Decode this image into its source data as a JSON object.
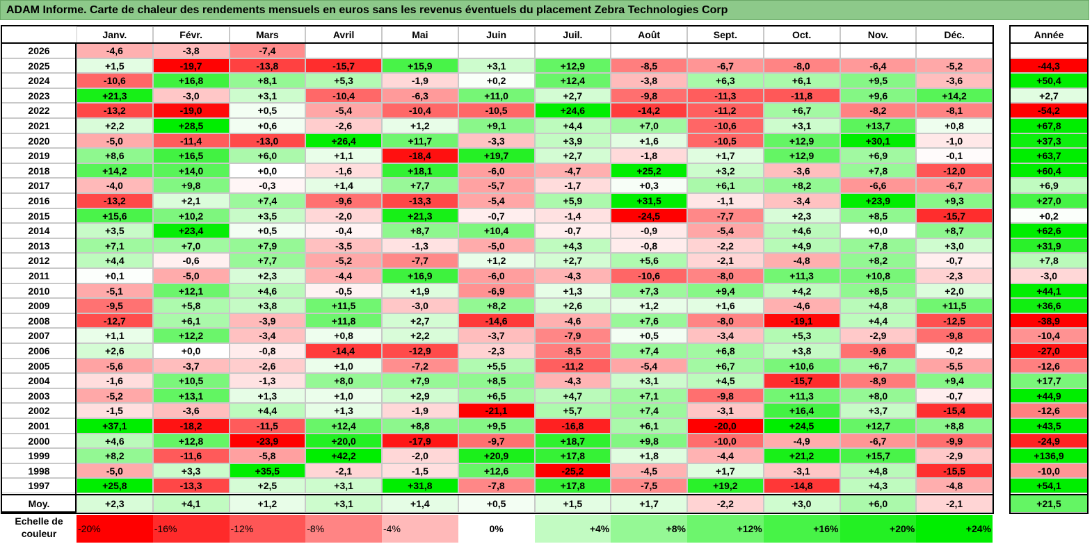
{
  "title": "ADAM Informe. Carte de chaleur des rendements mensuels en euros sans les revenus éventuels du placement Zebra Technologies Corp",
  "chart_data": {
    "type": "heatmap",
    "title": "ADAM Informe. Carte de chaleur des rendements mensuels en euros sans les revenus éventuels du placement Zebra Technologies Corp",
    "months": [
      "Janv.",
      "Févr.",
      "Mars",
      "Avril",
      "Mai",
      "Juin",
      "Juil.",
      "Août",
      "Sept.",
      "Oct.",
      "Nov.",
      "Déc."
    ],
    "annual_header": "Année",
    "rows": [
      {
        "year": "2026",
        "values": [
          "-4,6",
          "-3,8",
          "-7,4",
          "",
          "",
          "",
          "",
          "",
          "",
          "",
          "",
          ""
        ],
        "annual": ""
      },
      {
        "year": "2025",
        "values": [
          "+1,5",
          "-19,7",
          "-13,8",
          "-15,7",
          "+15,9",
          "+3,1",
          "+12,9",
          "-8,5",
          "-6,7",
          "-8,0",
          "-6,4",
          "-5,2"
        ],
        "annual": "-44,3"
      },
      {
        "year": "2024",
        "values": [
          "-10,6",
          "+16,8",
          "+8,1",
          "+5,3",
          "-1,9",
          "+0,2",
          "+12,4",
          "-3,8",
          "+6,3",
          "+6,1",
          "+9,5",
          "-3,6"
        ],
        "annual": "+50,4"
      },
      {
        "year": "2023",
        "values": [
          "+21,3",
          "-3,0",
          "+3,1",
          "-10,4",
          "-6,3",
          "+11,0",
          "+2,7",
          "-9,8",
          "-11,3",
          "-11,8",
          "+9,6",
          "+14,2"
        ],
        "annual": "+2,7"
      },
      {
        "year": "2022",
        "values": [
          "-13,2",
          "-19,0",
          "+0,5",
          "-5,4",
          "-10,4",
          "-10,5",
          "+24,6",
          "-14,2",
          "-11,2",
          "+6,7",
          "-8,2",
          "-8,1"
        ],
        "annual": "-54,2"
      },
      {
        "year": "2021",
        "values": [
          "+2,2",
          "+28,5",
          "+0,6",
          "-2,6",
          "+1,2",
          "+9,1",
          "+4,4",
          "+7,0",
          "-10,6",
          "+3,1",
          "+13,7",
          "+0,8"
        ],
        "annual": "+67,8"
      },
      {
        "year": "2020",
        "values": [
          "-5,0",
          "-11,4",
          "-13,0",
          "+26,4",
          "+11,7",
          "-3,3",
          "+3,9",
          "+1,6",
          "-10,5",
          "+12,9",
          "+30,1",
          "-1,0"
        ],
        "annual": "+37,3"
      },
      {
        "year": "2019",
        "values": [
          "+8,6",
          "+16,5",
          "+6,0",
          "+1,1",
          "-18,4",
          "+19,7",
          "+2,7",
          "-1,8",
          "+1,7",
          "+12,9",
          "+6,9",
          "-0,1"
        ],
        "annual": "+63,7"
      },
      {
        "year": "2018",
        "values": [
          "+14,2",
          "+14,0",
          "+0,0",
          "-1,6",
          "+18,1",
          "-6,0",
          "-4,7",
          "+25,2",
          "+3,2",
          "-3,6",
          "+7,8",
          "-12,0"
        ],
        "annual": "+60,4"
      },
      {
        "year": "2017",
        "values": [
          "-4,0",
          "+9,8",
          "-0,3",
          "+1,4",
          "+7,7",
          "-5,7",
          "-1,7",
          "+0,3",
          "+6,1",
          "+8,2",
          "-6,6",
          "-6,7"
        ],
        "annual": "+6,9"
      },
      {
        "year": "2016",
        "values": [
          "-13,2",
          "+2,1",
          "+7,4",
          "-9,6",
          "-13,3",
          "-5,4",
          "+5,9",
          "+31,5",
          "-1,1",
          "-3,4",
          "+23,9",
          "+9,3"
        ],
        "annual": "+27,0"
      },
      {
        "year": "2015",
        "values": [
          "+15,6",
          "+10,2",
          "+3,5",
          "-2,0",
          "+21,3",
          "-0,7",
          "-1,4",
          "-24,5",
          "-7,7",
          "+2,3",
          "+8,5",
          "-15,7"
        ],
        "annual": "+0,2"
      },
      {
        "year": "2014",
        "values": [
          "+3,5",
          "+23,4",
          "+0,5",
          "-0,4",
          "+8,7",
          "+10,4",
          "-0,7",
          "-0,9",
          "-5,4",
          "+4,6",
          "+0,0",
          "+8,7"
        ],
        "annual": "+62,6"
      },
      {
        "year": "2013",
        "values": [
          "+7,1",
          "+7,0",
          "+7,9",
          "-3,5",
          "-1,3",
          "-5,0",
          "+4,3",
          "-0,8",
          "-2,2",
          "+4,9",
          "+7,8",
          "+3,0"
        ],
        "annual": "+31,9"
      },
      {
        "year": "2012",
        "values": [
          "+4,4",
          "-0,6",
          "+7,7",
          "-5,2",
          "-7,7",
          "+1,2",
          "+2,7",
          "+5,6",
          "-2,1",
          "-4,8",
          "+8,2",
          "-0,7"
        ],
        "annual": "+7,8"
      },
      {
        "year": "2011",
        "values": [
          "+0,1",
          "-5,0",
          "+2,3",
          "-4,4",
          "+16,9",
          "-6,0",
          "-4,3",
          "-10,6",
          "-8,0",
          "+11,3",
          "+10,8",
          "-2,3"
        ],
        "annual": "-3,0"
      },
      {
        "year": "2010",
        "values": [
          "-5,1",
          "+12,1",
          "+4,6",
          "-0,5",
          "+1,9",
          "-6,9",
          "+1,3",
          "+7,3",
          "+9,4",
          "+4,2",
          "+8,5",
          "+2,0"
        ],
        "annual": "+44,1"
      },
      {
        "year": "2009",
        "values": [
          "-9,5",
          "+5,8",
          "+3,8",
          "+11,5",
          "-3,0",
          "+8,2",
          "+2,6",
          "+1,2",
          "+1,6",
          "-4,6",
          "+4,8",
          "+11,5"
        ],
        "annual": "+36,6"
      },
      {
        "year": "2008",
        "values": [
          "-12,7",
          "+6,1",
          "-3,9",
          "+11,8",
          "+2,7",
          "-14,6",
          "-4,6",
          "+7,6",
          "-8,0",
          "-19,1",
          "+4,4",
          "-12,5"
        ],
        "annual": "-38,9"
      },
      {
        "year": "2007",
        "values": [
          "+1,1",
          "+12,2",
          "-3,4",
          "+0,8",
          "+2,2",
          "-3,7",
          "-7,9",
          "+0,5",
          "-3,4",
          "+5,3",
          "-2,9",
          "-9,8"
        ],
        "annual": "-10,4"
      },
      {
        "year": "2006",
        "values": [
          "+2,6",
          "+0,0",
          "-0,8",
          "-14,4",
          "-12,9",
          "-2,3",
          "-8,5",
          "+7,4",
          "+6,8",
          "+3,8",
          "-9,6",
          "-0,2"
        ],
        "annual": "-27,0"
      },
      {
        "year": "2005",
        "values": [
          "-5,6",
          "-3,7",
          "-2,6",
          "+1,0",
          "-7,2",
          "+5,5",
          "-11,2",
          "-5,4",
          "+6,7",
          "+10,6",
          "+6,7",
          "-5,5"
        ],
        "annual": "-12,6"
      },
      {
        "year": "2004",
        "values": [
          "-1,6",
          "+10,5",
          "-1,3",
          "+8,0",
          "+7,9",
          "+8,5",
          "-4,3",
          "+3,1",
          "+4,5",
          "-15,7",
          "-8,9",
          "+9,4"
        ],
        "annual": "+17,7"
      },
      {
        "year": "2003",
        "values": [
          "-5,2",
          "+13,1",
          "+1,3",
          "+1,0",
          "+2,9",
          "+6,5",
          "+4,7",
          "+7,1",
          "-9,8",
          "+11,3",
          "+8,0",
          "-0,7"
        ],
        "annual": "+44,9"
      },
      {
        "year": "2002",
        "values": [
          "-1,5",
          "-3,6",
          "+4,4",
          "+1,3",
          "-1,9",
          "-21,1",
          "+5,7",
          "+7,4",
          "-3,1",
          "+16,4",
          "+3,7",
          "-15,4"
        ],
        "annual": "-12,6"
      },
      {
        "year": "2001",
        "values": [
          "+37,1",
          "-18,2",
          "-11,5",
          "+12,4",
          "+8,8",
          "+9,5",
          "-16,8",
          "+6,1",
          "-20,0",
          "+24,5",
          "+12,7",
          "+8,8"
        ],
        "annual": "+43,5"
      },
      {
        "year": "2000",
        "values": [
          "+4,6",
          "+12,8",
          "-23,9",
          "+20,0",
          "-17,9",
          "-9,7",
          "+18,7",
          "+9,8",
          "-10,0",
          "-4,9",
          "-6,7",
          "-9,9"
        ],
        "annual": "-24,9"
      },
      {
        "year": "1999",
        "values": [
          "+8,2",
          "-11,6",
          "-5,8",
          "+42,2",
          "-2,0",
          "+20,9",
          "+17,8",
          "+1,8",
          "-4,4",
          "+21,2",
          "+15,7",
          "-2,9"
        ],
        "annual": "+136,9"
      },
      {
        "year": "1998",
        "values": [
          "-5,0",
          "+3,3",
          "+35,5",
          "-2,1",
          "-1,5",
          "+12,6",
          "-25,2",
          "-4,5",
          "+1,7",
          "-3,1",
          "+4,8",
          "-15,5"
        ],
        "annual": "-10,0"
      },
      {
        "year": "1997",
        "values": [
          "+25,8",
          "-13,3",
          "+2,5",
          "+3,1",
          "+31,8",
          "-7,8",
          "+17,8",
          "-7,5",
          "+19,2",
          "-14,8",
          "+4,3",
          "-4,8"
        ],
        "annual": "+54,1"
      }
    ],
    "average": {
      "label": "Moy.",
      "values": [
        "+2,3",
        "+4,1",
        "+1,2",
        "+3,1",
        "+1,4",
        "+0,5",
        "+1,5",
        "+1,7",
        "-2,2",
        "+3,0",
        "+6,0",
        "-2,1"
      ],
      "annual": "+21,5"
    },
    "color_scale": {
      "label": "Echelle de couleur",
      "steps": [
        "-20%",
        "-16%",
        "-12%",
        "-8%",
        "-4%",
        "0%",
        "+4%",
        "+8%",
        "+12%",
        "+16%",
        "+20%",
        "+24%"
      ],
      "step_values": [
        -20,
        -16,
        -12,
        -8,
        -4,
        0,
        4,
        8,
        12,
        16,
        20,
        24
      ],
      "colors": {
        "negative": "#ff0000",
        "neutral": "#ffffff",
        "positive": "#00ee00"
      }
    }
  }
}
